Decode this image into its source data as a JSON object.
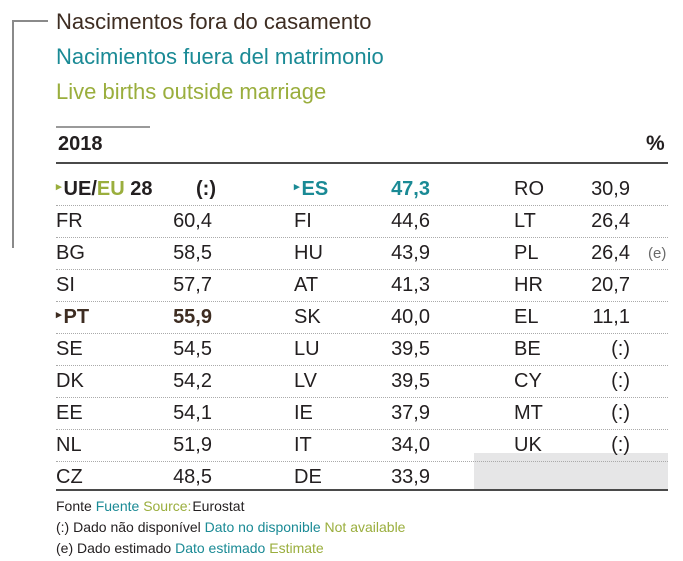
{
  "titles": {
    "pt": "Nascimentos fora do casamento",
    "es": "Nacimientos fuera del matrimonio",
    "en": "Live births outside marriage"
  },
  "header": {
    "year": "2018",
    "unit": "%"
  },
  "eu_label": {
    "first": "UE/",
    "second": "EU",
    "third": " 28"
  },
  "rows": [
    [
      {
        "code": "",
        "value": "(:)"
      },
      {
        "code": "ES",
        "value": "47,3"
      },
      {
        "code": "RO",
        "value": "30,9"
      }
    ],
    [
      {
        "code": "FR",
        "value": "60,4"
      },
      {
        "code": "FI",
        "value": "44,6"
      },
      {
        "code": "LT",
        "value": "26,4"
      }
    ],
    [
      {
        "code": "BG",
        "value": "58,5"
      },
      {
        "code": "HU",
        "value": "43,9"
      },
      {
        "code": "PL",
        "value": "26,4",
        "note": "(e)"
      }
    ],
    [
      {
        "code": "SI",
        "value": "57,7"
      },
      {
        "code": "AT",
        "value": "41,3"
      },
      {
        "code": "HR",
        "value": "20,7"
      }
    ],
    [
      {
        "code": "PT",
        "value": "55,9"
      },
      {
        "code": "SK",
        "value": "40,0"
      },
      {
        "code": "EL",
        "value": "11,1"
      }
    ],
    [
      {
        "code": "SE",
        "value": "54,5"
      },
      {
        "code": "LU",
        "value": "39,5"
      },
      {
        "code": "BE",
        "value": "(:)"
      }
    ],
    [
      {
        "code": "DK",
        "value": "54,2"
      },
      {
        "code": "LV",
        "value": "39,5"
      },
      {
        "code": "CY",
        "value": "(:)"
      }
    ],
    [
      {
        "code": "EE",
        "value": "54,1"
      },
      {
        "code": "IE",
        "value": "37,9"
      },
      {
        "code": "MT",
        "value": "(:)"
      }
    ],
    [
      {
        "code": "NL",
        "value": "51,9"
      },
      {
        "code": "IT",
        "value": "34,0"
      },
      {
        "code": "UK",
        "value": "(:)"
      }
    ],
    [
      {
        "code": "CZ",
        "value": "48,5"
      },
      {
        "code": "DE",
        "value": "33,9"
      },
      null
    ]
  ],
  "footer": {
    "source": {
      "pt": "Fonte",
      "es": "Fuente",
      "en": "Source:",
      "value": "Eurostat"
    },
    "na": {
      "code": "(:)",
      "pt": "Dado não disponível",
      "es": "Dato no disponible",
      "en": "Not available"
    },
    "est": {
      "code": "(e)",
      "pt": "Dado estimado",
      "es": "Dato estimado",
      "en": "Estimate"
    }
  },
  "colors": {
    "es_teal": "#1a8a95",
    "en_green": "#9aae3d",
    "pt_brown": "#3e2d22"
  }
}
